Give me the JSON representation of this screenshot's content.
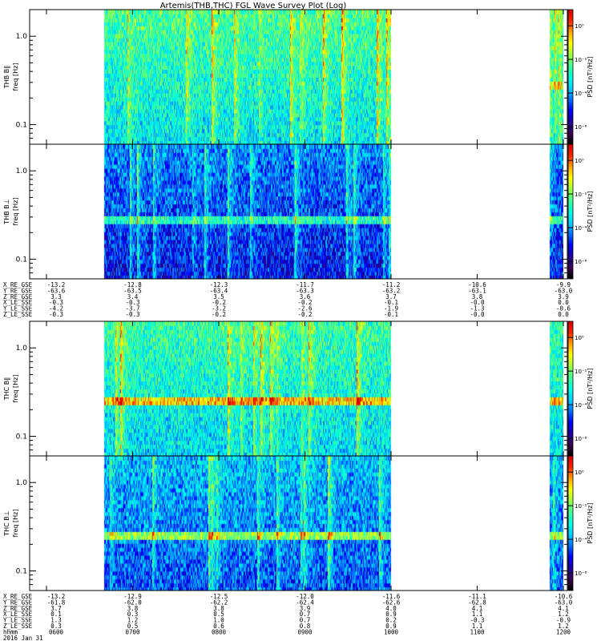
{
  "title": "Artemis(THB,THC) FGL Wave Survey Plot (Log)",
  "colors": {
    "background": "#ffffff",
    "axis": "#000000"
  },
  "colorbar": {
    "label": "PSD [nT²/Hz]",
    "ticks": [
      "10⁰",
      "10⁻²",
      "10⁻⁴",
      "10⁻⁶"
    ],
    "colormap": [
      "#000000",
      "#3c0050",
      "#1c00a0",
      "#0000ff",
      "#0070ff",
      "#00d0ff",
      "#00ffe0",
      "#40ff90",
      "#a0ff40",
      "#ffff00",
      "#ffa000",
      "#ff2000",
      "#d00000"
    ]
  },
  "chart_data": [
    {
      "type": "heatmap",
      "name": "thb-bpar",
      "ylabel_line1": "THB B∥",
      "ylabel_line2": "freq [Hz]",
      "yticks": [
        "1.0",
        "0.1"
      ],
      "x_range_hhmm": [
        "0600",
        "1200"
      ],
      "y_range_hz": [
        0.06,
        2.0
      ],
      "y_scale": "log",
      "data_gaps": [
        [
          "0600",
          "0640"
        ],
        [
          "1000",
          "1150"
        ]
      ],
      "level": 0.52,
      "band_hz": 0.27,
      "band_strength": 0.15,
      "band_x_start": "1150",
      "seed": 11
    },
    {
      "type": "heatmap",
      "name": "thb-bperp",
      "ylabel_line1": "THB B⊥",
      "ylabel_line2": "freq [Hz]",
      "yticks": [
        "1.0",
        "0.1"
      ],
      "x_range_hhmm": [
        "0600",
        "1200"
      ],
      "y_range_hz": [
        0.06,
        2.0
      ],
      "y_scale": "log",
      "data_gaps": [
        [
          "0600",
          "0640"
        ],
        [
          "1000",
          "1150"
        ]
      ],
      "level": 0.3,
      "band_hz": 0.27,
      "band_strength": 0.22,
      "band_x_start": "0600",
      "seed": 23
    },
    {
      "type": "heatmap",
      "name": "thc-bpar",
      "ylabel_line1": "THC B∥",
      "ylabel_line2": "freq [Hz]",
      "yticks": [
        "1.0",
        "0.1"
      ],
      "x_range_hhmm": [
        "0600",
        "1200"
      ],
      "y_range_hz": [
        0.06,
        2.0
      ],
      "y_scale": "log",
      "data_gaps": [
        [
          "0600",
          "0640"
        ],
        [
          "1000",
          "1150"
        ]
      ],
      "level": 0.5,
      "band_hz": 0.26,
      "band_strength": 0.3,
      "band_x_start": "0600",
      "seed": 37
    },
    {
      "type": "heatmap",
      "name": "thc-bperp",
      "ylabel_line1": "THC B⊥",
      "ylabel_line2": "freq [Hz]",
      "yticks": [
        "1.0",
        "0.1"
      ],
      "x_range_hhmm": [
        "0600",
        "1200"
      ],
      "y_range_hz": [
        0.06,
        2.0
      ],
      "y_scale": "log",
      "data_gaps": [
        [
          "0600",
          "0640"
        ],
        [
          "1000",
          "1150"
        ]
      ],
      "level": 0.36,
      "band_hz": 0.26,
      "band_strength": 0.3,
      "band_x_start": "0600",
      "seed": 51
    }
  ],
  "ephemeris_thb": {
    "rows": [
      {
        "label": "X_RE_GSE",
        "values": [
          "-13.2",
          "-12.8",
          "-12.3",
          "-11.7",
          "-11.2",
          "-10.6",
          "-9.9"
        ]
      },
      {
        "label": "Y_RE_GSE",
        "values": [
          "-63.6",
          "-63.5",
          "-63.4",
          "-63.3",
          "-63.2",
          "-63.1",
          "-63.0"
        ]
      },
      {
        "label": "Z_RE_GSE",
        "values": [
          "3.3",
          "3.4",
          "3.5",
          "3.6",
          "3.7",
          "3.8",
          "3.9"
        ]
      },
      {
        "label": "X_LE_SSE",
        "values": [
          "-0.3",
          "-0.3",
          "-0.2",
          "-0.2",
          "-0.1",
          "-0.0",
          "0.0"
        ]
      },
      {
        "label": "Y_LE_SSE",
        "values": [
          "-4.2",
          "-3.7",
          "-3.2",
          "-2.6",
          "-1.9",
          "-1.3",
          "-0.6"
        ]
      },
      {
        "label": "Z_LE_SSE",
        "values": [
          "-0.3",
          "-0.3",
          "-0.2",
          "-0.2",
          "-0.1",
          "-0.0",
          "0.0"
        ]
      }
    ]
  },
  "ephemeris_thc": {
    "rows": [
      {
        "label": "X_RE_GSE",
        "values": [
          "-13.2",
          "-12.9",
          "-12.5",
          "-12.0",
          "-11.6",
          "-11.1",
          "-10.6"
        ]
      },
      {
        "label": "Y_RE_GSE",
        "values": [
          "-61.8",
          "-62.0",
          "-62.2",
          "-62.4",
          "-62.6",
          "-62.8",
          "-63.0"
        ]
      },
      {
        "label": "Z_RE_GSE",
        "values": [
          "3.7",
          "3.8",
          "3.8",
          "3.9",
          "4.0",
          "4.1",
          "4.1"
        ]
      },
      {
        "label": "X_LE_SSE",
        "values": [
          "0.1",
          "0.3",
          "0.5",
          "0.7",
          "0.9",
          "1.1",
          "1.2"
        ]
      },
      {
        "label": "Y_LE_SSE",
        "values": [
          "1.3",
          "1.2",
          "1.0",
          "0.7",
          "0.2",
          "-0.3",
          "-0.9"
        ]
      },
      {
        "label": "Z_LE_SSE",
        "values": [
          "0.3",
          "0.5",
          "0.6",
          "0.8",
          "0.9",
          "1.1",
          "1.2"
        ]
      },
      {
        "label": "hhmm",
        "values": [
          "0600",
          "0700",
          "0800",
          "0900",
          "1000",
          "1100",
          "1200"
        ]
      }
    ],
    "date": "2016 Jan 31"
  }
}
